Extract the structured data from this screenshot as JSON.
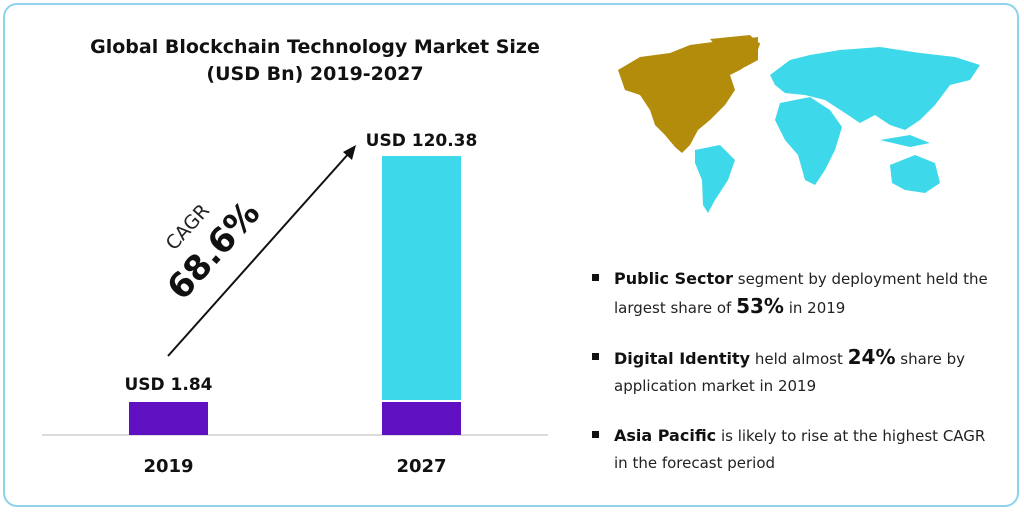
{
  "chart_data": {
    "type": "bar",
    "title": "Global Blockchain Technology Market Size (USD Bn) 2019-2027",
    "categories": [
      "2019",
      "2027"
    ],
    "values": [
      1.84,
      120.38
    ],
    "data_labels": [
      "USD 1.84",
      "USD 120.38"
    ],
    "annotation": {
      "label": "CAGR",
      "value": "68.6%"
    },
    "colors": {
      "base": "#5f10c0",
      "growth": "#3dd8ea"
    },
    "grid": false
  },
  "map": {
    "highlight_color": "#b38c0c",
    "other_color": "#3dd8ea"
  },
  "bullets": [
    {
      "bold": "Public Sector",
      "text1": " segment by deployment held the largest share of ",
      "big": "53%",
      "text2": " in 2019"
    },
    {
      "bold": "Digital Identity",
      "text1": " held almost ",
      "big": "24%",
      "text2": " share by application market in 2019"
    },
    {
      "bold": "Asia Pacific",
      "text1": " is likely to rise at the highest CAGR in the forecast period",
      "big": "",
      "text2": ""
    }
  ]
}
